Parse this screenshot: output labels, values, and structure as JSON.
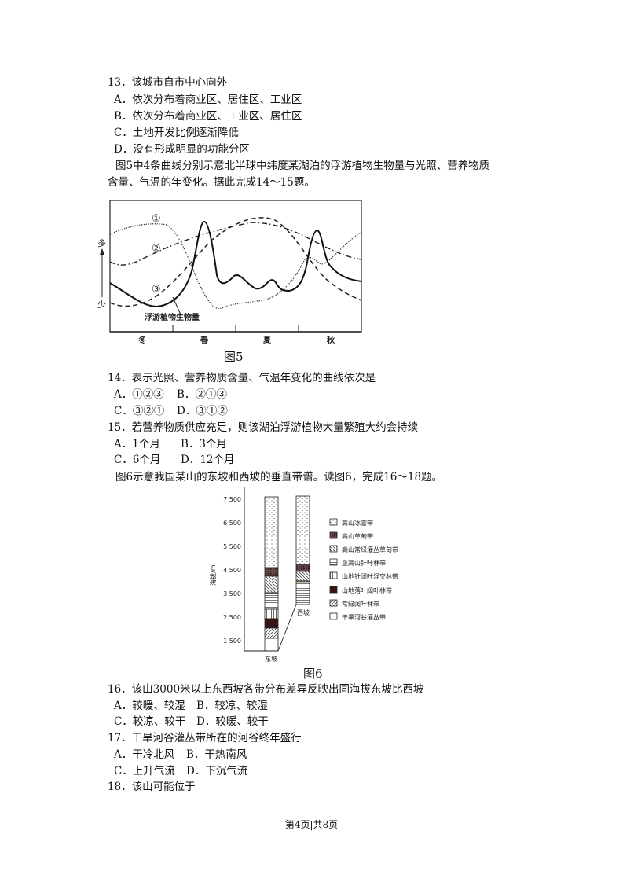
{
  "questions": {
    "q13": {
      "stem": "13．该城市自市中心向外",
      "A": "A．依次分布着商业区、居住区、工业区",
      "B": "B．依次分布着商业区、工业区、居住区",
      "C": "C．土地开发比例逐渐降低",
      "D": "D．没有形成明显的功能分区"
    },
    "intro5_line1": "图5中4条曲线分别示意北半球中纬度某湖泊的浮游植物生物量与光照、营养物质",
    "intro5_line2": "含量、气温的年变化。据此完成14～15题。",
    "q14": {
      "stem": "14．表示光照、营养物质含量、气温年变化的曲线依次是",
      "A": "A．①②③",
      "B": "B．②①③",
      "C": "C．③②①",
      "D": "D．③①②"
    },
    "q15": {
      "stem": "15．若营养物质供应充足，则该湖泊浮游植物大量繁殖大约会持续",
      "A": "A．1个月",
      "B": "B．3个月",
      "C": "C．6个月",
      "D": "D．12个月"
    },
    "intro6": "图6示意我国某山的东坡和西坡的垂直带谱。读图6，完成16～18题。",
    "q16": {
      "stem": "16．该山3000米以上东西坡各带分布差异反映出同海拔东坡比西坡",
      "A": "A．较暖、较湿",
      "B": "B．较凉、较湿",
      "C": "C．较凉、较干",
      "D": "D．较暖、较干"
    },
    "q17": {
      "stem": "17．干旱河谷灌丛带所在的河谷终年盛行",
      "A": "A．干冷北风",
      "B": "B．干热南风",
      "C": "C．上升气流",
      "D": "D．下沉气流"
    },
    "q18": {
      "stem": "18．该山可能位于"
    }
  },
  "figure5": {
    "caption": "图5",
    "curve_labels": [
      "①",
      "②",
      "③"
    ],
    "series_label": "浮游植物生物量",
    "y_high": "多",
    "y_low": "少",
    "seasons": [
      "冬",
      "春",
      "夏",
      "秋"
    ]
  },
  "figure6": {
    "caption": "图6",
    "ylabel": "海拔/m",
    "yticks": [
      "7 500",
      "6 500",
      "5 500",
      "4 500",
      "3 500",
      "2 500",
      "1 500"
    ],
    "east_label": "东坡",
    "west_label": "西坡",
    "legend": [
      "高山冰雪带",
      "高山草甸带",
      "高山常绿灌丛草甸带",
      "亚高山针叶林带",
      "山地针阔叶混交林带",
      "山地落叶阔叶林带",
      "常绿阔叶林带",
      "干旱河谷灌丛带"
    ]
  },
  "footer": "第4页|共8页"
}
